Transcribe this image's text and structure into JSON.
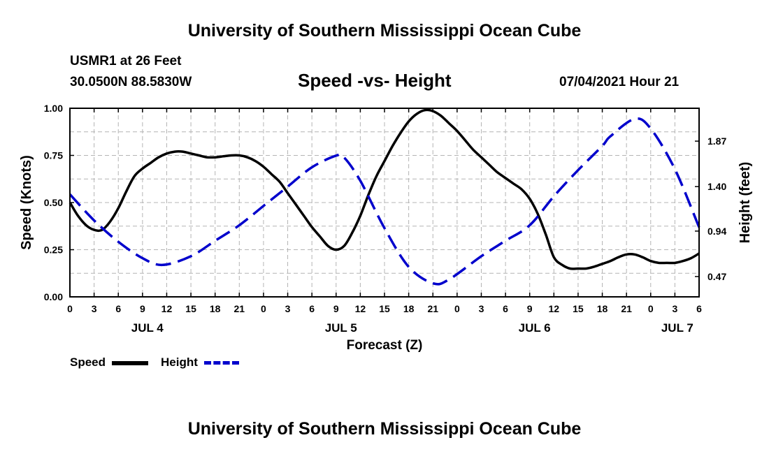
{
  "title_top": "University of Southern Mississippi Ocean Cube",
  "title_bottom": "University of Southern Mississippi Ocean Cube",
  "station": "USMR1 at 26 Feet",
  "coords": "30.0500N  88.5830W",
  "datetime": "07/04/2021 Hour 21",
  "legend": {
    "speed": "Speed",
    "height": "Height"
  },
  "colors": {
    "speed": "#000000",
    "height": "#0000cc",
    "grid": "#b4b4b4"
  },
  "chart_data": {
    "type": "line",
    "title": "Speed -vs- Height",
    "xlabel": "Forecast (Z)",
    "ylabel": "Speed (Knots)",
    "y2label": "Height (feet)",
    "x_unit": "hours from Jul 4 00Z",
    "xlim": [
      0,
      78
    ],
    "ylim": [
      0,
      1
    ],
    "y2lim": [
      0.26,
      2.21
    ],
    "x_ticks": [
      0,
      3,
      6,
      9,
      12,
      15,
      18,
      21,
      24,
      27,
      30,
      33,
      36,
      39,
      42,
      45,
      48,
      51,
      54,
      57,
      60,
      63,
      66,
      69,
      72,
      75,
      78
    ],
    "x_tick_labels": [
      "0",
      "3",
      "6",
      "9",
      "12",
      "15",
      "18",
      "21",
      "0",
      "3",
      "6",
      "9",
      "12",
      "15",
      "18",
      "21",
      "0",
      "3",
      "6",
      "9",
      "12",
      "15",
      "18",
      "21",
      "0",
      "3",
      "6"
    ],
    "day_labels": [
      {
        "x": 9.6,
        "label": "JUL 4"
      },
      {
        "x": 33.6,
        "label": "JUL 5"
      },
      {
        "x": 57.6,
        "label": "JUL 6"
      },
      {
        "x": 75.3,
        "label": "JUL 7"
      }
    ],
    "y_ticks": [
      0,
      0.25,
      0.5,
      0.75,
      1
    ],
    "y_tick_labels": [
      "0.00",
      "0.25",
      "0.50",
      "0.75",
      "1.00"
    ],
    "y2_ticks": [
      0.47,
      0.94,
      1.4,
      1.87
    ],
    "y2_tick_labels": [
      "0.47",
      "0.94",
      "1.40",
      "1.87"
    ],
    "series": [
      {
        "name": "Speed",
        "axis": "left",
        "style": "solid",
        "x": [
          0,
          1,
          2,
          3,
          4,
          5,
          6,
          7,
          8,
          9,
          10,
          11,
          12,
          13,
          14,
          15,
          16,
          17,
          18,
          19,
          20,
          21,
          22,
          23,
          24,
          25,
          26,
          27,
          28,
          29,
          30,
          31,
          32,
          33,
          34,
          35,
          36,
          37,
          38,
          39,
          40,
          41,
          42,
          43,
          44,
          45,
          46,
          47,
          48,
          49,
          50,
          51,
          52,
          53,
          54,
          55,
          56,
          57,
          58,
          59,
          60,
          61,
          62,
          63,
          64,
          65,
          66,
          67,
          68,
          69,
          70,
          71,
          72,
          73,
          74,
          75,
          76,
          77,
          78
        ],
        "values": [
          0.5,
          0.43,
          0.38,
          0.355,
          0.355,
          0.4,
          0.47,
          0.56,
          0.64,
          0.68,
          0.71,
          0.74,
          0.76,
          0.77,
          0.77,
          0.76,
          0.75,
          0.74,
          0.74,
          0.745,
          0.75,
          0.75,
          0.74,
          0.72,
          0.69,
          0.65,
          0.61,
          0.55,
          0.49,
          0.43,
          0.37,
          0.32,
          0.27,
          0.25,
          0.27,
          0.34,
          0.43,
          0.54,
          0.64,
          0.72,
          0.8,
          0.87,
          0.93,
          0.97,
          0.99,
          0.985,
          0.96,
          0.92,
          0.88,
          0.83,
          0.78,
          0.74,
          0.7,
          0.66,
          0.63,
          0.6,
          0.57,
          0.52,
          0.44,
          0.33,
          0.21,
          0.17,
          0.15,
          0.15,
          0.15,
          0.16,
          0.175,
          0.19,
          0.21,
          0.225,
          0.225,
          0.21,
          0.19,
          0.18,
          0.18,
          0.18,
          0.19,
          0.205,
          0.23
        ]
      },
      {
        "name": "Height",
        "axis": "right",
        "style": "dashed",
        "x": [
          0,
          3,
          6,
          9,
          11.5,
          15,
          18,
          21,
          24,
          27,
          30,
          33,
          34,
          36,
          39,
          42,
          45,
          47,
          51,
          54,
          57,
          60,
          63,
          66,
          67,
          70,
          72,
          75,
          78
        ],
        "values": [
          1.32,
          1.05,
          0.83,
          0.66,
          0.59,
          0.68,
          0.84,
          1.0,
          1.2,
          1.4,
          1.6,
          1.72,
          1.7,
          1.46,
          0.97,
          0.57,
          0.4,
          0.44,
          0.68,
          0.84,
          1.0,
          1.3,
          1.57,
          1.82,
          1.92,
          2.1,
          2.0,
          1.58,
          0.98
        ]
      }
    ]
  }
}
